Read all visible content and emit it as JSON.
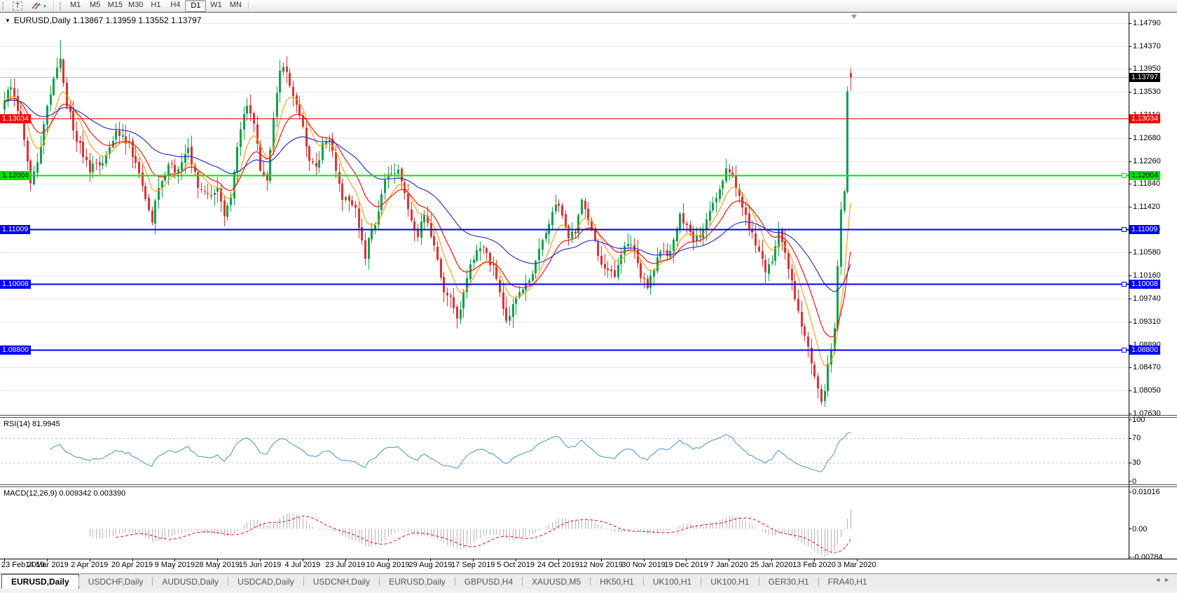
{
  "toolbar": {
    "text_tool_label": "T",
    "timeframes": [
      "M1",
      "M5",
      "M15",
      "M30",
      "H1",
      "H4",
      "D1",
      "W1",
      "MN"
    ],
    "active_timeframe": "D1"
  },
  "icons": {
    "collapse": "▼",
    "caret": "▾",
    "tab_scroll_left": "◄",
    "tab_scroll_right": "►",
    "objects_tool": "arrows-icon"
  },
  "chart": {
    "symbol": "EURUSD",
    "period": "Daily",
    "title_line": "EURUSD,Daily 1.13867 1.13959 1.13552 1.13797",
    "ohlc": {
      "open": "1.13867",
      "high": "1.13959",
      "low": "1.13552",
      "close": "1.13797"
    }
  },
  "indicators": {
    "rsi": {
      "label": "RSI(14) 81.9945",
      "period": 14,
      "value": "81.9945",
      "axis_labels": [
        "100",
        "70",
        "30",
        "0"
      ],
      "levels": [
        70,
        30
      ],
      "color": "#4094d0"
    },
    "macd": {
      "label": "MACD(12,26,9) 0.009342 0.003390",
      "fast": 12,
      "slow": 26,
      "signal": 9,
      "macd_value": "0.009342",
      "signal_value": "0.003390",
      "axis_labels": [
        "0.01016",
        "0.00",
        "-0.00784"
      ],
      "hist_color": "#b4b4b4",
      "signal_color": "#ff0000"
    }
  },
  "colors": {
    "grid": "#e9e9e9",
    "up": "#0fa24b",
    "down": "#e03232",
    "axis_text": "#000000",
    "current_price_badge": "#000000",
    "current_price_line": "#bcbcbc"
  },
  "chart_data": {
    "type": "candlestick",
    "title": "EURUSD,Daily",
    "candle_count": 259,
    "price_axis_ticks": [
      "1.14790",
      "1.14370",
      "1.13950",
      "1.13530",
      "1.13110",
      "1.12680",
      "1.12260",
      "1.11840",
      "1.11420",
      "1.11000",
      "1.10580",
      "1.10160",
      "1.09740",
      "1.09310",
      "1.08890",
      "1.08470",
      "1.08050",
      "1.07630"
    ],
    "x_axis_dates": [
      "23 Feb 2019",
      "14 Mar 2019",
      "2 Apr 2019",
      "20 Apr 2019",
      "9 May 2019",
      "28 May 2019",
      "15 Jun 2019",
      "4 Jul 2019",
      "23 Jul 2019",
      "10 Aug 2019",
      "29 Aug 2019",
      "17 Sep 2019",
      "5 Oct 2019",
      "24 Oct 2019",
      "12 Nov 2019",
      "30 Nov 2019",
      "19 Dec 2019",
      "7 Jan 2020",
      "25 Jan 2020",
      "13 Feb 2020",
      "3 Mar 2020"
    ],
    "current_price": {
      "value": 1.13797,
      "label": "1.13797"
    },
    "hlines": [
      {
        "price": 1.13034,
        "label": "1.13034",
        "color": "#ff0000",
        "text": "#ffffff",
        "width": 1,
        "handle": false
      },
      {
        "price": 1.12004,
        "label": "1.12004",
        "color": "#00e400",
        "text": "#000000",
        "width": 2,
        "handle": true
      },
      {
        "price": 1.11009,
        "label": "1.11009",
        "color": "#0000ff",
        "text": "#ffffff",
        "width": 2,
        "handle": true
      },
      {
        "price": 1.10008,
        "label": "1.10008",
        "color": "#0000ff",
        "text": "#ffffff",
        "width": 2,
        "handle": true
      },
      {
        "price": 1.088,
        "label": "1.08800",
        "color": "#0000ff",
        "text": "#ffffff",
        "width": 2,
        "handle": true
      }
    ],
    "moving_averages": [
      {
        "period": 8,
        "color": "#ff9c00"
      },
      {
        "period": 16,
        "color": "#ff0000"
      },
      {
        "period": 42,
        "color": "#2222cc"
      }
    ],
    "close_waypoints": [
      [
        0,
        1.1335
      ],
      [
        2,
        1.1368
      ],
      [
        5,
        1.13
      ],
      [
        8,
        1.1187
      ],
      [
        10,
        1.122
      ],
      [
        13,
        1.1325
      ],
      [
        16,
        1.14
      ],
      [
        17,
        1.141
      ],
      [
        19,
        1.133
      ],
      [
        22,
        1.1268
      ],
      [
        26,
        1.121
      ],
      [
        30,
        1.1226
      ],
      [
        34,
        1.1284
      ],
      [
        38,
        1.1258
      ],
      [
        41,
        1.12
      ],
      [
        44,
        1.1136
      ],
      [
        45,
        1.1115
      ],
      [
        47,
        1.118
      ],
      [
        50,
        1.1216
      ],
      [
        53,
        1.121
      ],
      [
        56,
        1.125
      ],
      [
        59,
        1.1176
      ],
      [
        62,
        1.116
      ],
      [
        65,
        1.1176
      ],
      [
        67,
        1.113
      ],
      [
        69,
        1.1166
      ],
      [
        72,
        1.129
      ],
      [
        74,
        1.1332
      ],
      [
        76,
        1.13
      ],
      [
        78,
        1.1214
      ],
      [
        80,
        1.119
      ],
      [
        82,
        1.131
      ],
      [
        84,
        1.1388
      ],
      [
        85,
        1.1405
      ],
      [
        87,
        1.1368
      ],
      [
        89,
        1.1334
      ],
      [
        91,
        1.1284
      ],
      [
        93,
        1.123
      ],
      [
        95,
        1.1214
      ],
      [
        97,
        1.1254
      ],
      [
        99,
        1.127
      ],
      [
        101,
        1.1214
      ],
      [
        103,
        1.116
      ],
      [
        105,
        1.115
      ],
      [
        107,
        1.114
      ],
      [
        109,
        1.1078
      ],
      [
        110,
        1.1045
      ],
      [
        111,
        1.1086
      ],
      [
        113,
        1.1114
      ],
      [
        116,
        1.119
      ],
      [
        118,
        1.1205
      ],
      [
        120,
        1.1216
      ],
      [
        122,
        1.117
      ],
      [
        124,
        1.111
      ],
      [
        126,
        1.1086
      ],
      [
        128,
        1.1134
      ],
      [
        130,
        1.109
      ],
      [
        132,
        1.104
      ],
      [
        134,
        1.099
      ],
      [
        136,
        1.0972
      ],
      [
        138,
        1.093
      ],
      [
        140,
        1.099
      ],
      [
        142,
        1.103
      ],
      [
        144,
        1.1064
      ],
      [
        146,
        1.1073
      ],
      [
        148,
        1.104
      ],
      [
        150,
        1.1016
      ],
      [
        153,
        1.0932
      ],
      [
        155,
        1.096
      ],
      [
        157,
        1.0986
      ],
      [
        160,
        1.1004
      ],
      [
        163,
        1.106
      ],
      [
        166,
        1.111
      ],
      [
        168,
        1.115
      ],
      [
        170,
        1.113
      ],
      [
        172,
        1.108
      ],
      [
        174,
        1.11
      ],
      [
        176,
        1.1152
      ],
      [
        178,
        1.112
      ],
      [
        180,
        1.1075
      ],
      [
        182,
        1.104
      ],
      [
        184,
        1.1023
      ],
      [
        186,
        1.101
      ],
      [
        188,
        1.105
      ],
      [
        190,
        1.1076
      ],
      [
        192,
        1.106
      ],
      [
        194,
        1.1018
      ],
      [
        196,
        1.0995
      ],
      [
        198,
        1.103
      ],
      [
        200,
        1.106
      ],
      [
        202,
        1.1046
      ],
      [
        204,
        1.108
      ],
      [
        206,
        1.1122
      ],
      [
        208,
        1.111
      ],
      [
        210,
        1.1077
      ],
      [
        212,
        1.109
      ],
      [
        214,
        1.112
      ],
      [
        216,
        1.115
      ],
      [
        218,
        1.118
      ],
      [
        220,
        1.1212
      ],
      [
        222,
        1.1196
      ],
      [
        224,
        1.116
      ],
      [
        226,
        1.1122
      ],
      [
        228,
        1.109
      ],
      [
        230,
        1.106
      ],
      [
        232,
        1.1024
      ],
      [
        234,
        1.104
      ],
      [
        236,
        1.1093
      ],
      [
        238,
        1.106
      ],
      [
        240,
        1.1
      ],
      [
        242,
        1.0946
      ],
      [
        244,
        1.09
      ],
      [
        246,
        1.086
      ],
      [
        247,
        1.0831
      ],
      [
        249,
        1.0786
      ],
      [
        250,
        1.0805
      ],
      [
        251,
        1.0852
      ],
      [
        252,
        1.088
      ],
      [
        253,
        1.0925
      ],
      [
        254,
        1.1027
      ],
      [
        255,
        1.1134
      ],
      [
        256,
        1.1174
      ],
      [
        257,
        1.136
      ],
      [
        258,
        1.13797
      ]
    ],
    "wick_overrides": [
      {
        "index": 17,
        "high": 1.1448
      },
      {
        "index": 249,
        "low": 1.0778
      }
    ],
    "last_candle": {
      "open": 1.13867,
      "high": 1.13959,
      "low": 1.13552,
      "close": 1.13797
    }
  },
  "tabs": {
    "items": [
      "EURUSD,Daily",
      "USDCHF,Daily",
      "AUDUSD,Daily",
      "USDCAD,Daily",
      "USDCNH,Daily",
      "EURUSD,Daily",
      "GBPUSD,H4",
      "XAUUSD,M5",
      "HK50,H1",
      "UK100,H1",
      "UK100,H1",
      "GER30,H1",
      "FRA40,H1"
    ],
    "active_index": 0
  }
}
